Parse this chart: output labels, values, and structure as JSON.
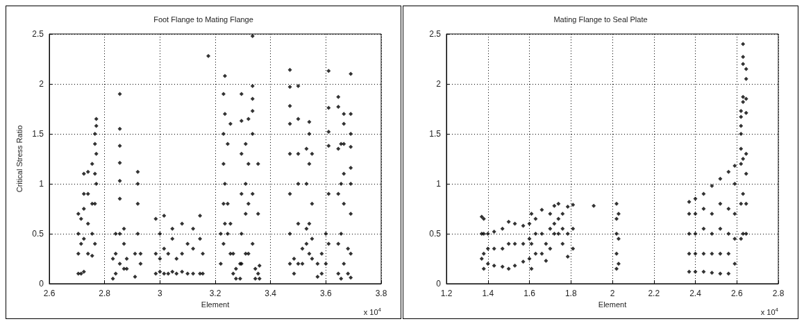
{
  "chart_data": [
    {
      "type": "scatter",
      "title": "Foot Flange to Mating Flange",
      "xlabel": "Element",
      "ylabel": "Critical Stress Ratio",
      "color": "#000000",
      "marker": "diamond",
      "grid": true,
      "x": [
        2.705,
        2.705,
        2.705,
        2.705,
        2.715,
        2.715,
        2.715,
        2.725,
        2.725,
        2.725,
        2.725,
        2.725,
        2.74,
        2.74,
        2.74,
        2.74,
        2.755,
        2.755,
        2.755,
        2.755,
        2.765,
        2.765,
        2.765,
        2.765,
        2.765,
        2.77,
        2.77,
        2.77,
        2.77,
        2.83,
        2.83,
        2.84,
        2.84,
        2.84,
        2.855,
        2.855,
        2.855,
        2.855,
        2.855,
        2.855,
        2.855,
        2.855,
        2.87,
        2.87,
        2.87,
        2.88,
        2.88,
        2.91,
        2.91,
        2.92,
        2.92,
        2.92,
        2.92,
        2.93,
        2.93,
        2.985,
        2.985,
        2.985,
        3.0,
        3.0,
        3.0,
        3.015,
        3.015,
        3.015,
        3.03,
        3.03,
        3.045,
        3.045,
        3.045,
        3.06,
        3.06,
        3.08,
        3.08,
        3.08,
        3.1,
        3.1,
        3.12,
        3.12,
        3.12,
        3.145,
        3.145,
        3.145,
        3.155,
        3.155,
        3.175,
        3.22,
        3.22,
        3.23,
        3.23,
        3.23,
        3.23,
        3.23,
        3.235,
        3.235,
        3.235,
        3.235,
        3.245,
        3.245,
        3.245,
        3.255,
        3.255,
        3.255,
        3.265,
        3.265,
        3.275,
        3.275,
        3.29,
        3.29,
        3.295,
        3.295,
        3.295,
        3.295,
        3.295,
        3.295,
        3.31,
        3.31,
        3.31,
        3.31,
        3.32,
        3.32,
        3.32,
        3.32,
        3.335,
        3.335,
        3.335,
        3.335,
        3.335,
        3.335,
        3.335,
        3.345,
        3.345,
        3.355,
        3.355,
        3.355,
        3.36,
        3.36,
        3.47,
        3.47,
        3.47,
        3.47,
        3.47,
        3.47,
        3.47,
        3.47,
        3.485,
        3.485,
        3.5,
        3.5,
        3.5,
        3.5,
        3.5,
        3.5,
        3.515,
        3.515,
        3.53,
        3.53,
        3.53,
        3.53,
        3.54,
        3.54,
        3.54,
        3.54,
        3.54,
        3.55,
        3.55,
        3.55,
        3.55,
        3.57,
        3.57,
        3.585,
        3.585,
        3.6,
        3.6,
        3.61,
        3.61,
        3.61,
        3.61,
        3.61,
        3.61,
        3.645,
        3.645,
        3.645,
        3.645,
        3.645,
        3.645,
        3.655,
        3.655,
        3.655,
        3.655,
        3.665,
        3.665,
        3.665,
        3.665,
        3.665,
        3.665,
        3.68,
        3.68,
        3.69,
        3.69,
        3.69,
        3.69,
        3.69,
        3.69,
        3.69,
        3.69,
        3.69
      ],
      "values": [
        0.1,
        0.3,
        0.5,
        0.7,
        0.1,
        0.4,
        0.65,
        0.12,
        0.45,
        0.75,
        0.9,
        1.1,
        0.3,
        0.6,
        0.9,
        1.12,
        0.28,
        0.5,
        0.8,
        1.2,
        0.4,
        0.8,
        1.1,
        1.4,
        1.5,
        1.0,
        1.3,
        1.58,
        1.65,
        0.05,
        0.25,
        0.1,
        0.3,
        0.5,
        0.2,
        0.5,
        0.85,
        1.03,
        1.21,
        1.38,
        1.55,
        1.9,
        0.15,
        0.4,
        0.55,
        0.15,
        0.25,
        0.07,
        0.3,
        0.5,
        0.8,
        1.0,
        1.12,
        0.2,
        0.3,
        0.1,
        0.3,
        0.65,
        0.12,
        0.25,
        0.5,
        0.1,
        0.35,
        0.68,
        0.1,
        0.3,
        0.12,
        0.45,
        0.55,
        0.1,
        0.25,
        0.12,
        0.3,
        0.6,
        0.1,
        0.4,
        0.1,
        0.35,
        0.55,
        0.1,
        0.45,
        0.68,
        0.1,
        0.3,
        2.28,
        0.2,
        0.5,
        0.4,
        0.8,
        1.2,
        1.5,
        1.9,
        0.6,
        1.0,
        1.7,
        2.08,
        0.5,
        0.8,
        1.4,
        0.3,
        0.6,
        1.6,
        0.1,
        0.3,
        0.05,
        0.15,
        0.05,
        0.2,
        0.2,
        0.5,
        0.9,
        1.3,
        1.63,
        1.9,
        0.3,
        0.7,
        1.0,
        1.4,
        0.3,
        0.8,
        1.2,
        1.65,
        0.4,
        0.9,
        1.5,
        1.73,
        1.85,
        1.98,
        2.48,
        0.05,
        0.15,
        0.1,
        0.7,
        1.2,
        0.05,
        0.18,
        0.2,
        0.5,
        0.9,
        1.3,
        1.6,
        1.78,
        1.97,
        2.14,
        0.1,
        0.25,
        0.2,
        0.6,
        1.0,
        1.3,
        1.65,
        1.98,
        0.2,
        0.35,
        0.4,
        0.55,
        1.0,
        1.35,
        0.3,
        0.6,
        1.2,
        1.5,
        1.62,
        0.25,
        0.45,
        0.8,
        1.3,
        0.07,
        0.2,
        0.1,
        0.3,
        0.2,
        0.5,
        0.4,
        0.9,
        1.38,
        1.52,
        1.76,
        2.13,
        0.1,
        0.4,
        0.9,
        1.35,
        1.77,
        1.87,
        0.05,
        0.5,
        1.0,
        1.4,
        0.2,
        0.8,
        1.1,
        1.4,
        1.6,
        1.7,
        0.1,
        0.35,
        0.06,
        0.3,
        0.7,
        1.0,
        1.16,
        1.37,
        1.5,
        1.7,
        2.1
      ],
      "xlim": [
        2.6,
        3.8
      ],
      "xticks": [
        2.6,
        2.8,
        3,
        3.2,
        3.4,
        3.6,
        3.8
      ],
      "ylim": [
        0,
        2.5
      ],
      "yticks": [
        0,
        0.5,
        1,
        1.5,
        2,
        2.5
      ],
      "annotations": [
        "x 10$^{4}$"
      ]
    },
    {
      "type": "scatter",
      "title": "Mating Flange to Seal Plate",
      "xlabel": "Element",
      "color": "#000000",
      "marker": "diamond",
      "grid": true,
      "x": [
        1.37,
        1.37,
        1.37,
        1.38,
        1.38,
        1.38,
        1.38,
        1.4,
        1.4,
        1.4,
        1.43,
        1.43,
        1.43,
        1.47,
        1.47,
        1.47,
        1.5,
        1.5,
        1.5,
        1.53,
        1.53,
        1.53,
        1.57,
        1.57,
        1.57,
        1.6,
        1.6,
        1.6,
        1.61,
        1.61,
        1.61,
        1.63,
        1.63,
        1.63,
        1.66,
        1.66,
        1.66,
        1.68,
        1.68,
        1.7,
        1.7,
        1.7,
        1.72,
        1.72,
        1.72,
        1.74,
        1.74,
        1.74,
        1.76,
        1.76,
        1.76,
        1.785,
        1.785,
        1.785,
        1.81,
        1.81,
        1.81,
        1.91,
        2.02,
        2.02,
        2.02,
        2.02,
        2.02,
        2.03,
        2.03,
        2.03,
        2.37,
        2.37,
        2.37,
        2.37,
        2.37,
        2.4,
        2.4,
        2.4,
        2.4,
        2.4,
        2.44,
        2.44,
        2.44,
        2.44,
        2.44,
        2.48,
        2.48,
        2.48,
        2.48,
        2.48,
        2.52,
        2.52,
        2.52,
        2.52,
        2.52,
        2.56,
        2.56,
        2.56,
        2.56,
        2.56,
        2.59,
        2.59,
        2.59,
        2.59,
        2.59,
        2.62,
        2.62,
        2.62,
        2.62,
        2.62,
        2.62,
        2.62,
        2.62,
        2.63,
        2.63,
        2.63,
        2.63,
        2.63,
        2.63,
        2.63,
        2.63,
        2.645,
        2.645,
        2.645,
        2.645,
        2.645,
        2.645,
        2.645,
        2.645
      ],
      "values": [
        0.25,
        0.5,
        0.67,
        0.15,
        0.3,
        0.5,
        0.65,
        0.2,
        0.35,
        0.5,
        0.18,
        0.35,
        0.52,
        0.17,
        0.35,
        0.55,
        0.15,
        0.4,
        0.62,
        0.18,
        0.4,
        0.6,
        0.22,
        0.4,
        0.58,
        0.25,
        0.45,
        0.6,
        0.15,
        0.4,
        0.7,
        0.3,
        0.5,
        0.65,
        0.3,
        0.5,
        0.74,
        0.23,
        0.4,
        0.35,
        0.55,
        0.7,
        0.5,
        0.6,
        0.78,
        0.5,
        0.65,
        0.8,
        0.4,
        0.55,
        0.7,
        0.27,
        0.5,
        0.77,
        0.35,
        0.55,
        0.79,
        0.78,
        0.15,
        0.3,
        0.5,
        0.65,
        0.8,
        0.2,
        0.45,
        0.7,
        0.12,
        0.3,
        0.5,
        0.7,
        0.82,
        0.12,
        0.3,
        0.5,
        0.7,
        0.85,
        0.12,
        0.3,
        0.55,
        0.75,
        0.9,
        0.11,
        0.3,
        0.5,
        0.7,
        0.98,
        0.1,
        0.3,
        0.55,
        0.8,
        1.05,
        0.1,
        0.3,
        0.5,
        0.75,
        1.12,
        0.2,
        0.45,
        0.7,
        1.0,
        1.18,
        0.45,
        0.8,
        1.2,
        1.35,
        1.5,
        1.58,
        1.67,
        1.73,
        0.5,
        0.9,
        1.25,
        1.82,
        1.87,
        2.2,
        2.27,
        2.4,
        0.5,
        0.8,
        1.1,
        1.3,
        1.71,
        1.85,
        2.05,
        2.15
      ],
      "xlim": [
        1.2,
        2.8
      ],
      "xticks": [
        1.2,
        1.4,
        1.6,
        1.8,
        2,
        2.2,
        2.4,
        2.6,
        2.8
      ],
      "ylim": [
        0,
        2.5
      ],
      "yticks": [
        0,
        0.5,
        1,
        1.5,
        2,
        2.5
      ],
      "annotations": [
        "x 10$^{4}$"
      ]
    }
  ]
}
